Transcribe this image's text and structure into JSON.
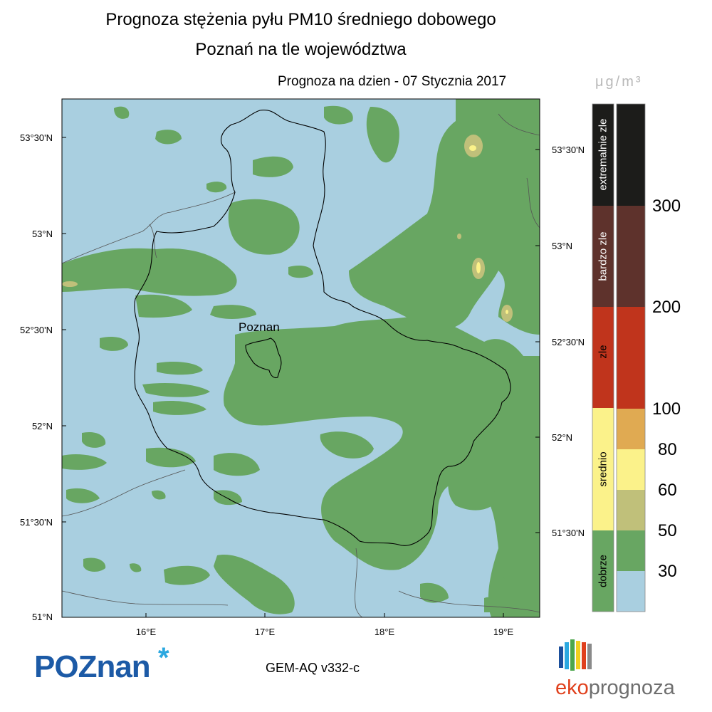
{
  "title_line1": "Prognoza stężenia pyłu PM10 średniego dobowego",
  "title_line2": "Poznań na tle województwa",
  "forecast_date": "Prognoza na dzien -  07 Stycznia 2017",
  "city_label": "Poznan",
  "lat_labels_left": [
    "53°30'N",
    "53°N",
    "52°30'N",
    "52°N",
    "51°30'N",
    "51°N"
  ],
  "lat_labels_right": [
    "53°30'N",
    "53°N",
    "52°30'N",
    "52°N",
    "51°30'N"
  ],
  "lon_labels": [
    "16°E",
    "17°E",
    "18°E",
    "19°E"
  ],
  "legend": {
    "unit": "μg/m³",
    "categories": [
      {
        "label": "extremalnie zle",
        "color": "#1c1c1a"
      },
      {
        "label": "bardzo zle",
        "color": "#5e322c"
      },
      {
        "label": "zle",
        "color": "#c0341c"
      },
      {
        "label": "srednio",
        "color": "#fbf28a"
      },
      {
        "label": "dobrze",
        "color": "#68a662"
      }
    ],
    "bins": [
      {
        "color": "#1c1c1a"
      },
      {
        "color": "#5e322c"
      },
      {
        "color": "#c0341c"
      },
      {
        "color": "#e0aa52"
      },
      {
        "color": "#fbf28a"
      },
      {
        "color": "#c0c07a"
      },
      {
        "color": "#68a662"
      },
      {
        "color": "#a9cfe0"
      }
    ],
    "thresholds": [
      "300",
      "200",
      "100",
      "80",
      "60",
      "50",
      "30"
    ]
  },
  "colors": {
    "background_low": "#a9cfe0",
    "good": "#68a662",
    "medium_low": "#c0c07a",
    "medium": "#fbf28a"
  },
  "footer": {
    "poznan_logo": "POZnan",
    "model": "GEM-AQ v332-c",
    "eko_brand_1": "eko",
    "eko_brand_2": "prognoza"
  }
}
